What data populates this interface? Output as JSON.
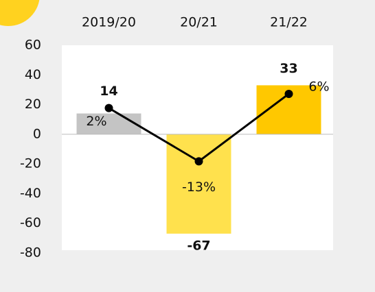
{
  "chart_data": {
    "type": "bar",
    "categories": [
      "2019/20",
      "20/21",
      "21/22"
    ],
    "series": [
      {
        "type": "bar",
        "colors": [
          "#c4c4c4",
          "#ffe14d",
          "#ffc800"
        ],
        "values": [
          14,
          -67,
          33
        ]
      },
      {
        "type": "line",
        "axis": "y2",
        "color": "#000000",
        "values": [
          2,
          -13,
          6
        ],
        "value_labels": [
          "2%",
          "-13%",
          "6%"
        ]
      }
    ],
    "ylim": [
      -80,
      60
    ],
    "yticks": [
      -80,
      -60,
      -40,
      -20,
      0,
      20,
      40,
      60
    ],
    "y2lim": [
      -38.8,
      19.7
    ]
  }
}
